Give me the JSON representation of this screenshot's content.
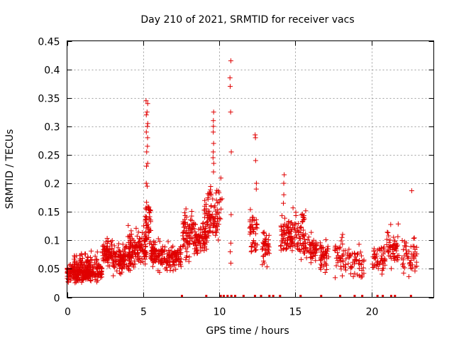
{
  "chart_data": {
    "type": "scatter",
    "title": "Day 210 of 2021, SRMTID for receiver vacs",
    "xlabel": "GPS time / hours",
    "ylabel": "SRMTID / TECUs",
    "xlim": [
      0,
      24.1
    ],
    "ylim": [
      0,
      0.45
    ],
    "x_ticks": [
      0,
      5,
      10,
      15,
      20
    ],
    "x_tick_labels": [
      "0",
      "5",
      "10",
      "15",
      "20"
    ],
    "y_ticks": [
      0,
      0.05,
      0.1,
      0.15,
      0.2,
      0.25,
      0.3,
      0.35,
      0.4,
      0.45
    ],
    "y_tick_labels": [
      "0",
      "0.05",
      "0.1",
      "0.15",
      "0.2",
      "0.25",
      "0.3",
      "0.35",
      "0.4",
      "0.45"
    ],
    "grid": true,
    "marker": "+",
    "series_color": "#e00000",
    "clusters": [
      {
        "x": [
          0.0,
          2.3
        ],
        "ylo": 0.02,
        "yhi": 0.065,
        "n": 260
      },
      {
        "x": [
          0.4,
          2.0
        ],
        "ylo": 0.035,
        "yhi": 0.09,
        "n": 60
      },
      {
        "x": [
          2.3,
          3.0
        ],
        "ylo": 0.045,
        "yhi": 0.11,
        "n": 70
      },
      {
        "x": [
          3.0,
          4.2
        ],
        "ylo": 0.03,
        "yhi": 0.1,
        "n": 120
      },
      {
        "x": [
          4.0,
          5.2
        ],
        "ylo": 0.04,
        "yhi": 0.13,
        "n": 120
      },
      {
        "x": [
          5.1,
          5.5
        ],
        "ylo": 0.06,
        "yhi": 0.2,
        "n": 50
      },
      {
        "x": [
          5.5,
          6.3
        ],
        "ylo": 0.04,
        "yhi": 0.11,
        "n": 80
      },
      {
        "x": [
          6.3,
          7.5
        ],
        "ylo": 0.04,
        "yhi": 0.1,
        "n": 100
      },
      {
        "x": [
          7.6,
          8.5
        ],
        "ylo": 0.05,
        "yhi": 0.17,
        "n": 90
      },
      {
        "x": [
          8.5,
          9.2
        ],
        "ylo": 0.06,
        "yhi": 0.14,
        "n": 60
      },
      {
        "x": [
          9.0,
          10.2
        ],
        "ylo": 0.08,
        "yhi": 0.22,
        "n": 110
      },
      {
        "x": [
          12.0,
          12.5
        ],
        "ylo": 0.05,
        "yhi": 0.17,
        "n": 45
      },
      {
        "x": [
          12.8,
          13.3
        ],
        "ylo": 0.05,
        "yhi": 0.13,
        "n": 45
      },
      {
        "x": [
          14.0,
          15.0
        ],
        "ylo": 0.05,
        "yhi": 0.16,
        "n": 90
      },
      {
        "x": [
          15.0,
          15.7
        ],
        "ylo": 0.05,
        "yhi": 0.17,
        "n": 60
      },
      {
        "x": [
          15.7,
          16.4
        ],
        "ylo": 0.05,
        "yhi": 0.12,
        "n": 50
      },
      {
        "x": [
          16.6,
          17.2
        ],
        "ylo": 0.03,
        "yhi": 0.11,
        "n": 45
      },
      {
        "x": [
          17.6,
          18.6
        ],
        "ylo": 0.03,
        "yhi": 0.12,
        "n": 50
      },
      {
        "x": [
          18.6,
          19.6
        ],
        "ylo": 0.02,
        "yhi": 0.1,
        "n": 40
      },
      {
        "x": [
          20.0,
          20.9
        ],
        "ylo": 0.03,
        "yhi": 0.11,
        "n": 50
      },
      {
        "x": [
          21.0,
          21.8
        ],
        "ylo": 0.03,
        "yhi": 0.14,
        "n": 55
      },
      {
        "x": [
          22.0,
          23.0
        ],
        "ylo": 0.03,
        "yhi": 0.12,
        "n": 50
      }
    ],
    "peaks": [
      {
        "x": 5.25,
        "y": [
          0.345,
          0.34,
          0.325,
          0.32,
          0.305,
          0.3,
          0.29,
          0.28,
          0.265,
          0.255,
          0.235,
          0.23,
          0.2,
          0.195
        ]
      },
      {
        "x": 9.6,
        "y": [
          0.325,
          0.31,
          0.3,
          0.29,
          0.27,
          0.255,
          0.245,
          0.235,
          0.22
        ]
      },
      {
        "x": 10.75,
        "y": [
          0.415,
          0.385,
          0.37,
          0.325,
          0.255,
          0.145,
          0.095,
          0.08,
          0.06
        ]
      },
      {
        "x": 12.4,
        "y": [
          0.285,
          0.28,
          0.24,
          0.2,
          0.19
        ]
      },
      {
        "x": 14.25,
        "y": [
          0.215,
          0.2,
          0.18,
          0.165
        ]
      },
      {
        "x": 22.6,
        "y": [
          0.187
        ]
      }
    ],
    "zero_markers_x": [
      7.55,
      9.15,
      10.1,
      10.3,
      10.55,
      10.8,
      11.05,
      11.6,
      12.35,
      12.75,
      13.3,
      13.55,
      14.0,
      15.35,
      16.7,
      17.95,
      18.9,
      19.4,
      20.4,
      20.75,
      21.3,
      21.55,
      22.6
    ]
  }
}
